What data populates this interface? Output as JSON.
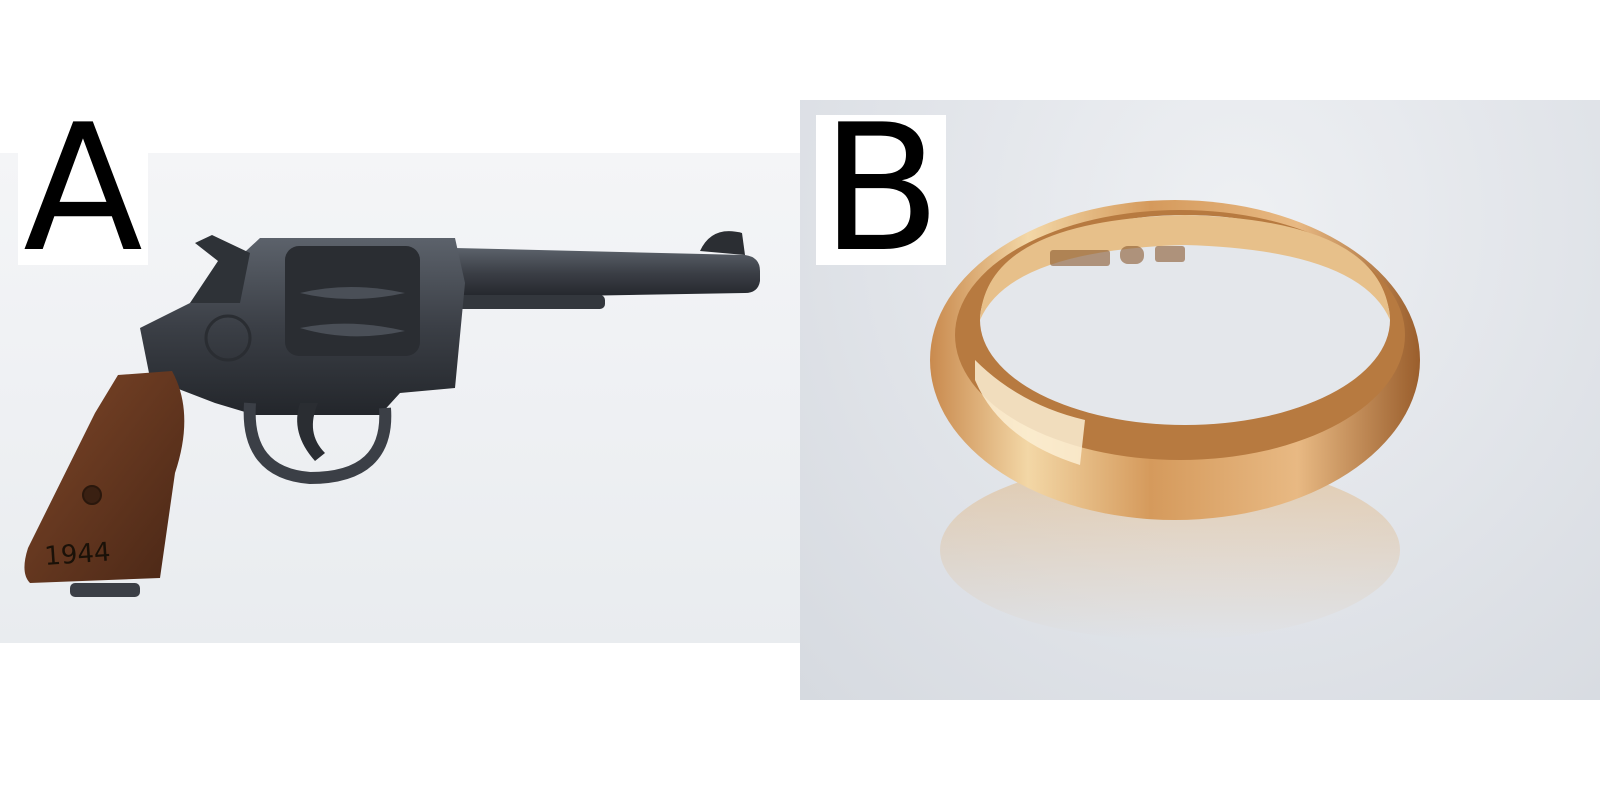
{
  "panels": [
    {
      "label": "A",
      "subject": "revolver",
      "grip_inscription": {
        "text": "1944",
        "color": "#1a1108"
      },
      "colors": {
        "steel": "#3b3f46",
        "steel_dark": "#23262b",
        "steel_highlight": "#5c626b",
        "grip": "#6b3a22",
        "grip_dark": "#4a2716"
      }
    },
    {
      "label": "B",
      "subject": "gold-ring",
      "colors": {
        "gold_light": "#f3d7a6",
        "gold_mid": "#d59a5c",
        "gold_dark": "#9a5e2c",
        "inner": "#e7c08a"
      }
    }
  ]
}
